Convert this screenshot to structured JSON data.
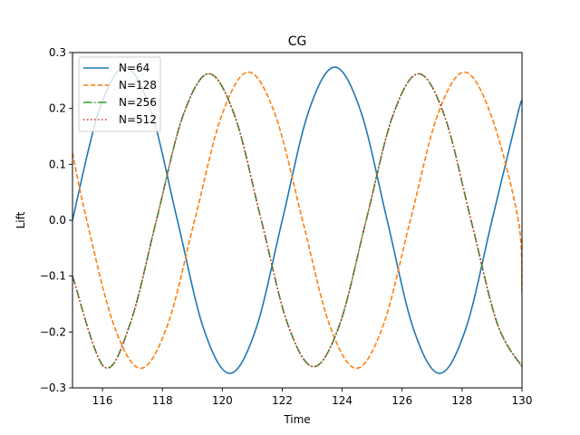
{
  "chart_data": {
    "type": "line",
    "title": "CG",
    "xlabel": "Time",
    "ylabel": "Lift",
    "xlim": [
      115,
      130
    ],
    "ylim": [
      -0.3,
      0.3
    ],
    "xticks": [
      116,
      118,
      120,
      122,
      124,
      126,
      128,
      130
    ],
    "yticks": [
      -0.3,
      -0.2,
      -0.1,
      0.0,
      0.1,
      0.2,
      0.3
    ],
    "xtick_labels": [
      "116",
      "118",
      "120",
      "122",
      "124",
      "126",
      "128",
      "130"
    ],
    "ytick_labels": [
      "−0.3",
      "−0.2",
      "−0.1",
      "0.0",
      "0.1",
      "0.2",
      "0.3"
    ],
    "grid": false,
    "legend_position": "top-left",
    "series": [
      {
        "name": "N=64",
        "color": "#1f77b4",
        "style": "solid",
        "x": [
          115,
          115.875,
          116.75,
          117.625,
          118.5,
          119.375,
          120.25,
          121.125,
          122,
          122.875,
          123.75,
          124.625,
          125.5,
          126.375,
          127.25,
          128.125,
          129,
          129.875,
          130
        ],
        "y": [
          0.0,
          0.194,
          0.274,
          0.194,
          0.0,
          -0.194,
          -0.274,
          -0.194,
          0.0,
          0.194,
          0.274,
          0.194,
          0.0,
          -0.194,
          -0.274,
          -0.194,
          0.0,
          0.194,
          0.21
        ]
      },
      {
        "name": "N=128",
        "color": "#ff7f0e",
        "style": "dashed",
        "x": [
          115,
          115.475,
          116.375,
          117.275,
          118.175,
          119.075,
          119.975,
          120.875,
          121.775,
          122.675,
          123.575,
          124.475,
          125.375,
          126.275,
          127.175,
          128.075,
          128.975,
          129.875,
          130
        ],
        "y": [
          0.12,
          0.0,
          -0.187,
          -0.265,
          -0.187,
          0.0,
          0.187,
          0.265,
          0.187,
          0.0,
          -0.187,
          -0.265,
          -0.187,
          0.0,
          0.187,
          0.265,
          0.187,
          0.0,
          -0.13
        ]
      },
      {
        "name": "N=256",
        "color": "#2ca02c",
        "style": "dashdot",
        "x": [
          115,
          116.05,
          116.925,
          117.8,
          118.675,
          119.55,
          120.425,
          121.3,
          122.175,
          123.05,
          123.925,
          124.8,
          125.675,
          126.55,
          127.425,
          128.3,
          129.175,
          130
        ],
        "y": [
          -0.1,
          -0.262,
          -0.185,
          0.0,
          0.185,
          0.262,
          0.185,
          0.0,
          -0.185,
          -0.262,
          -0.185,
          0.0,
          0.185,
          0.262,
          0.185,
          0.0,
          -0.185,
          -0.262
        ]
      },
      {
        "name": "N=512",
        "color": "#d62728",
        "style": "dotted",
        "x": [
          115,
          116.05,
          116.925,
          117.8,
          118.675,
          119.55,
          120.425,
          121.3,
          122.175,
          123.05,
          123.925,
          124.8,
          125.675,
          126.55,
          127.425,
          128.3,
          129.175,
          130
        ],
        "y": [
          -0.1,
          -0.262,
          -0.185,
          0.0,
          0.185,
          0.262,
          0.185,
          0.0,
          -0.185,
          -0.262,
          -0.185,
          0.0,
          0.185,
          0.262,
          0.185,
          0.0,
          -0.185,
          -0.262
        ]
      }
    ]
  }
}
